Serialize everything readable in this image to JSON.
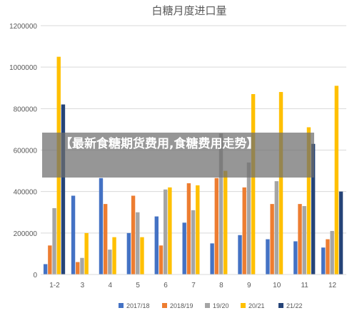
{
  "banner": {
    "text": "【最新食糖期货费用,食糖费用走势】"
  },
  "chart_data": {
    "type": "bar",
    "title": "白糖月度进口量",
    "xlabel": "",
    "ylabel": "",
    "ylim": [
      0,
      1200000
    ],
    "yticks": [
      0,
      200000,
      400000,
      600000,
      800000,
      1000000,
      1200000
    ],
    "grid": true,
    "legend_position": "bottom",
    "categories": [
      "1-2",
      "3",
      "4",
      "5",
      "6",
      "7",
      "8",
      "9",
      "10",
      "11",
      "12"
    ],
    "series": [
      {
        "name": "2017/18",
        "color": "#4472C4",
        "values": [
          50000,
          380000,
          465000,
          200000,
          280000,
          250000,
          150000,
          190000,
          170000,
          160000,
          130000
        ]
      },
      {
        "name": "2018/19",
        "color": "#ED7D31",
        "values": [
          140000,
          60000,
          340000,
          380000,
          140000,
          440000,
          465000,
          420000,
          340000,
          340000,
          170000
        ]
      },
      {
        "name": "19/20",
        "color": "#A5A5A5",
        "values": [
          320000,
          80000,
          120000,
          300000,
          410000,
          310000,
          680000,
          540000,
          450000,
          330000,
          210000
        ]
      },
      {
        "name": "20/21",
        "color": "#FFC000",
        "values": [
          1050000,
          200000,
          180000,
          180000,
          420000,
          430000,
          500000,
          870000,
          880000,
          710000,
          910000
        ]
      },
      {
        "name": "21/22",
        "color": "#264478",
        "values": [
          820000,
          null,
          null,
          null,
          null,
          null,
          null,
          null,
          null,
          630000,
          400000
        ]
      }
    ]
  }
}
